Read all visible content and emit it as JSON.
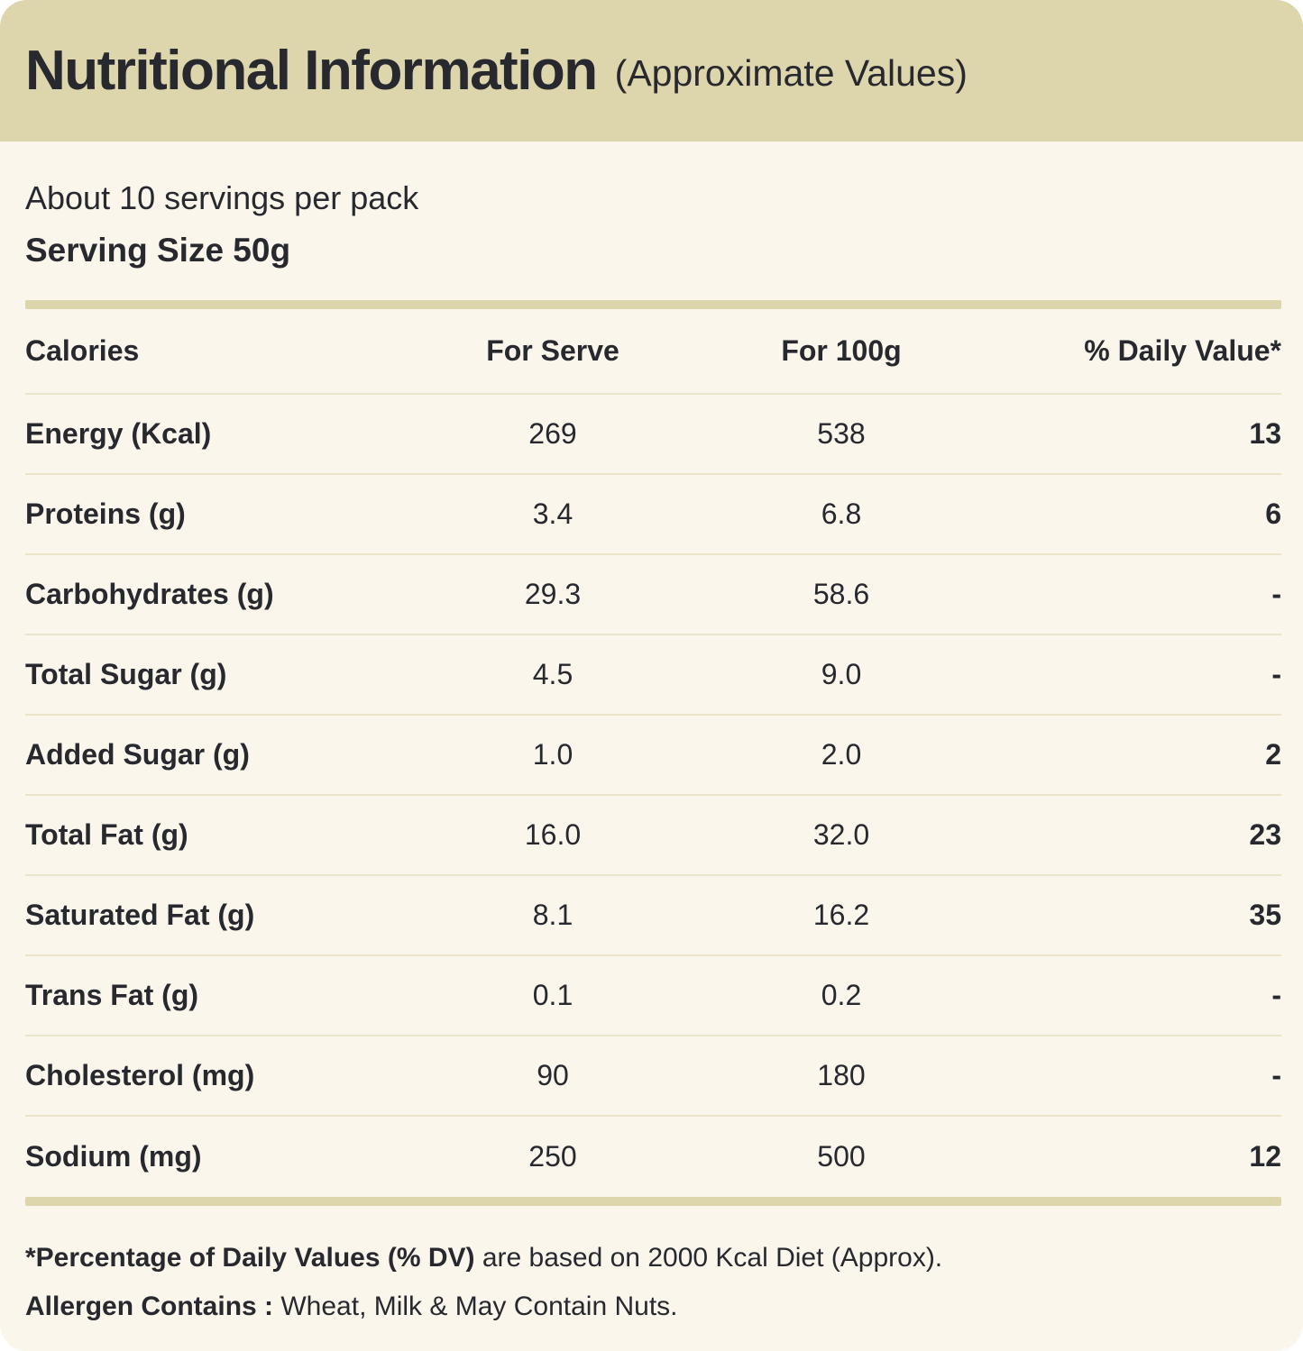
{
  "header": {
    "title": "Nutritional Information",
    "subtitle": "(Approximate Values)"
  },
  "info": {
    "servings": "About 10 servings per pack",
    "serving_size": "Serving Size 50g"
  },
  "table": {
    "columns": {
      "nutrient": "Calories",
      "serve": "For Serve",
      "per100": "For 100g",
      "daily": "% Daily Value*"
    },
    "rows": [
      {
        "label": "Energy (Kcal)",
        "serve": "269",
        "per100": "538",
        "daily": "13"
      },
      {
        "label": "Proteins (g)",
        "serve": "3.4",
        "per100": "6.8",
        "daily": "6"
      },
      {
        "label": "Carbohydrates (g)",
        "serve": "29.3",
        "per100": "58.6",
        "daily": "-"
      },
      {
        "label": "Total Sugar (g)",
        "serve": "4.5",
        "per100": "9.0",
        "daily": "-"
      },
      {
        "label": "Added Sugar (g)",
        "serve": "1.0",
        "per100": "2.0",
        "daily": "2"
      },
      {
        "label": "Total Fat (g)",
        "serve": "16.0",
        "per100": "32.0",
        "daily": "23"
      },
      {
        "label": "Saturated Fat (g)",
        "serve": "8.1",
        "per100": "16.2",
        "daily": "35"
      },
      {
        "label": "Trans Fat (g)",
        "serve": "0.1",
        "per100": "0.2",
        "daily": "-"
      },
      {
        "label": "Cholesterol (mg)",
        "serve": "90",
        "per100": "180",
        "daily": "-"
      },
      {
        "label": "Sodium (mg)",
        "serve": "250",
        "per100": "500",
        "daily": "12"
      }
    ]
  },
  "footnotes": {
    "daily_value_bold": "*Percentage of Daily Values (% DV)",
    "daily_value_rest": " are based on 2000 Kcal Diet (Approx).",
    "allergen_bold": "Allergen Contains :",
    "allergen_rest": " Wheat, Milk &  May Contain Nuts."
  },
  "colors": {
    "header_bg": "#ddd5ab",
    "body_bg": "#faf6ec",
    "text": "#28282f",
    "divider_thick": "#ddd5ab",
    "divider_thin": "#ece4c9"
  }
}
